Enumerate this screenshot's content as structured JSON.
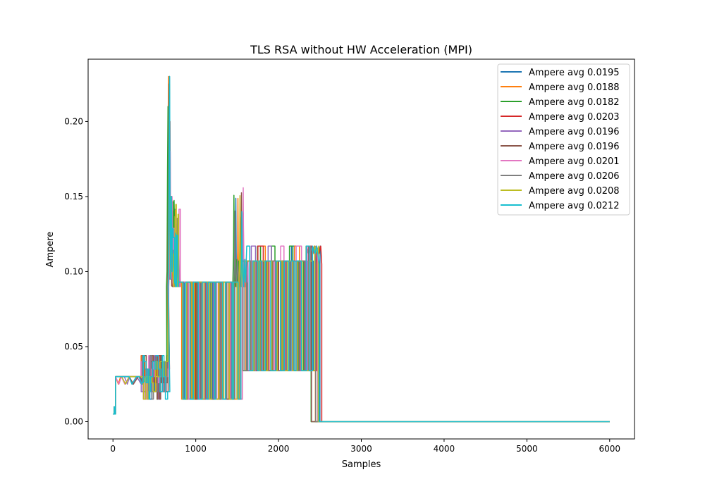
{
  "chart_data": {
    "type": "line",
    "title": "TLS RSA without HW Acceleration (MPI)",
    "xlabel": "Samples",
    "ylabel": "Ampere",
    "xlim": [
      -300,
      6300
    ],
    "ylim": [
      -0.0115,
      0.2415
    ],
    "xticks": [
      0,
      1000,
      2000,
      3000,
      4000,
      5000,
      6000
    ],
    "xtick_labels": [
      "0",
      "1000",
      "2000",
      "3000",
      "4000",
      "5000",
      "6000"
    ],
    "yticks": [
      0.0,
      0.05,
      0.1,
      0.15,
      0.2
    ],
    "ytick_labels": [
      "0.00",
      "0.05",
      "0.10",
      "0.15",
      "0.20"
    ],
    "grid": false,
    "legend_position": "top-right",
    "series": [
      {
        "name": "Ampere avg 0.0195",
        "color": "#1f77b4",
        "seed": 1,
        "end": 2500,
        "peak": 0.23,
        "offset": 0
      },
      {
        "name": "Ampere avg 0.0188",
        "color": "#ff7f0e",
        "seed": 2,
        "end": 2450,
        "peak": 0.23,
        "offset": -40
      },
      {
        "name": "Ampere avg 0.0182",
        "color": "#2ca02c",
        "seed": 3,
        "end": 2400,
        "peak": 0.21,
        "offset": -60
      },
      {
        "name": "Ampere avg 0.0203",
        "color": "#d62728",
        "seed": 4,
        "end": 2520,
        "peak": 0.2,
        "offset": 20
      },
      {
        "name": "Ampere avg 0.0196",
        "color": "#9467bd",
        "seed": 5,
        "end": 2480,
        "peak": 0.195,
        "offset": 10
      },
      {
        "name": "Ampere avg 0.0196",
        "color": "#8c564b",
        "seed": 6,
        "end": 2400,
        "peak": 0.225,
        "offset": -20
      },
      {
        "name": "Ampere avg 0.0201",
        "color": "#e377c2",
        "seed": 7,
        "end": 2470,
        "peak": 0.18,
        "offset": 30
      },
      {
        "name": "Ampere avg 0.0206",
        "color": "#7f7f7f",
        "seed": 8,
        "end": 2450,
        "peak": 0.215,
        "offset": -10
      },
      {
        "name": "Ampere avg 0.0208",
        "color": "#bcbd22",
        "seed": 9,
        "end": 2480,
        "peak": 0.225,
        "offset": 0
      },
      {
        "name": "Ampere avg 0.0212",
        "color": "#17becf",
        "seed": 10,
        "end": 2490,
        "peak": 0.23,
        "offset": 5
      }
    ]
  }
}
